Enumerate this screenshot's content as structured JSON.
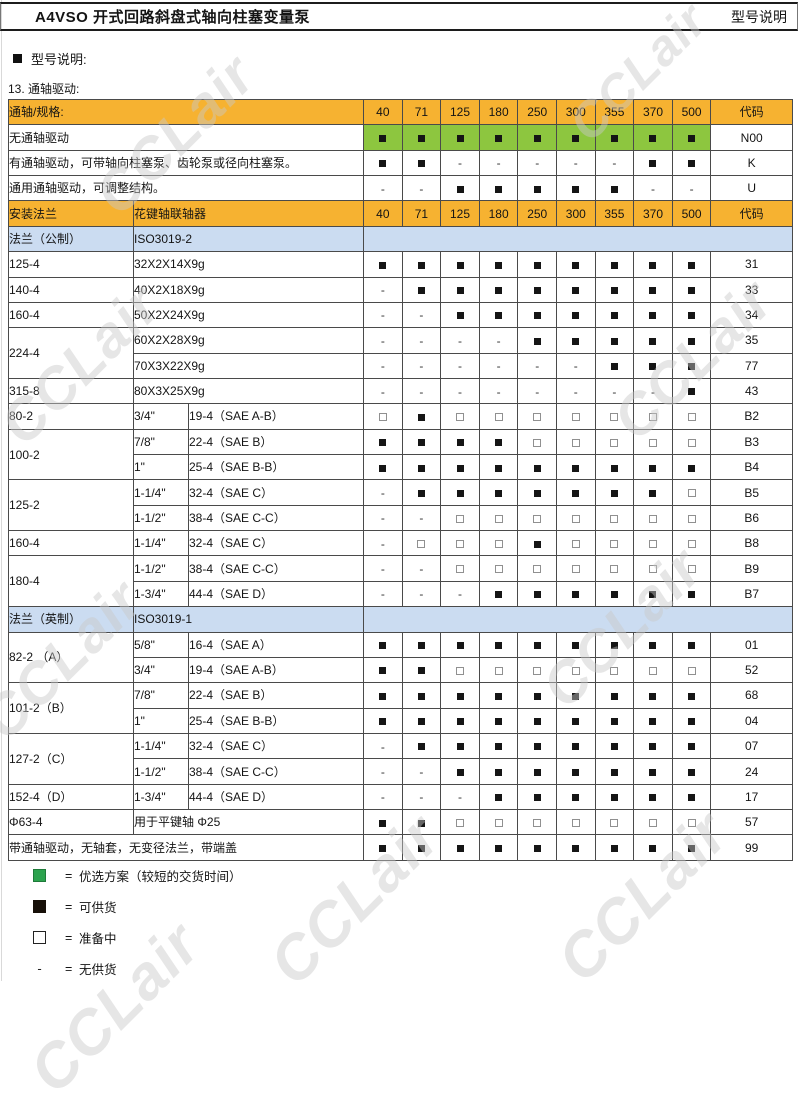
{
  "header": {
    "title_left": "A4VSO 开式回路斜盘式轴向柱塞变量泵",
    "title_right": "型号说明",
    "section_title": "型号说明:",
    "subsection": "13. 通轴驱动:"
  },
  "watermark_text": "CCLair",
  "colors": {
    "header_orange": "#F6B231",
    "preferred_green": "#8DC63F",
    "section_blue": "#CBDCF1",
    "legend_green": "#2CA34E",
    "grid": "#4a4a4a"
  },
  "table": {
    "header1_label": "通轴/规格:",
    "header2_label1": "安装法兰",
    "header2_label2": "花键轴联轴器",
    "size_columns": [
      "40",
      "71",
      "125",
      "180",
      "250",
      "300",
      "355",
      "370",
      "500"
    ],
    "code_header": "代码",
    "drive_rows": [
      {
        "label": "无通轴驱动",
        "preferred": true,
        "marks": [
          "f",
          "f",
          "f",
          "f",
          "f",
          "f",
          "f",
          "f",
          "f"
        ],
        "code": "N00"
      },
      {
        "label": "有通轴驱动，可带轴向柱塞泵、齿轮泵或径向柱塞泵。",
        "marks": [
          "f",
          "f",
          "-",
          "-",
          "-",
          "-",
          "-",
          "f",
          "f"
        ],
        "code": "K"
      },
      {
        "label": "通用通轴驱动，可调整结构。",
        "marks": [
          "-",
          "-",
          "f",
          "f",
          "f",
          "f",
          "f",
          "-",
          "-"
        ],
        "code": "U"
      }
    ],
    "body": [
      {
        "type": "section",
        "c1": "法兰（公制）",
        "c2": "ISO3019-2"
      },
      {
        "type": "row",
        "flange": "125-4",
        "rowspan": 1,
        "shaft": "32X2X14X9g",
        "coupling": "",
        "marks": [
          "f",
          "f",
          "f",
          "f",
          "f",
          "f",
          "f",
          "f",
          "f"
        ],
        "code": "31"
      },
      {
        "type": "row",
        "flange": "140-4",
        "rowspan": 1,
        "shaft": "40X2X18X9g",
        "coupling": "",
        "marks": [
          "-",
          "f",
          "f",
          "f",
          "f",
          "f",
          "f",
          "f",
          "f"
        ],
        "code": "33"
      },
      {
        "type": "row",
        "flange": "160-4",
        "rowspan": 1,
        "shaft": "50X2X24X9g",
        "coupling": "",
        "marks": [
          "-",
          "-",
          "f",
          "f",
          "f",
          "f",
          "f",
          "f",
          "f"
        ],
        "code": "34"
      },
      {
        "type": "row",
        "flange": "224-4",
        "rowspan": 2,
        "shaft": "60X2X28X9g",
        "coupling": "",
        "marks": [
          "-",
          "-",
          "-",
          "-",
          "f",
          "f",
          "f",
          "f",
          "f"
        ],
        "code": "35"
      },
      {
        "type": "row",
        "flange": null,
        "shaft": "70X3X22X9g",
        "coupling": "",
        "marks": [
          "-",
          "-",
          "-",
          "-",
          "-",
          "-",
          "f",
          "f",
          "f"
        ],
        "code": "77"
      },
      {
        "type": "row",
        "flange": "315-8",
        "rowspan": 1,
        "shaft": "80X3X25X9g",
        "coupling": "",
        "marks": [
          "-",
          "-",
          "-",
          "-",
          "-",
          "-",
          "-",
          "-",
          "f"
        ],
        "code": "43"
      },
      {
        "type": "row",
        "flange": "80-2",
        "rowspan": 1,
        "shaft": "3/4\"",
        "coupling": "19-4（SAE A-B）",
        "marks": [
          "o",
          "f",
          "o",
          "o",
          "o",
          "o",
          "o",
          "o",
          "o"
        ],
        "code": "B2"
      },
      {
        "type": "row",
        "flange": "100-2",
        "rowspan": 2,
        "shaft": "7/8\"",
        "coupling": "22-4（SAE B）",
        "marks": [
          "f",
          "f",
          "f",
          "f",
          "o",
          "o",
          "o",
          "o",
          "o"
        ],
        "code": "B3"
      },
      {
        "type": "row",
        "flange": null,
        "shaft": "1\"",
        "coupling": "25-4（SAE B-B）",
        "marks": [
          "f",
          "f",
          "f",
          "f",
          "f",
          "f",
          "f",
          "f",
          "f"
        ],
        "code": "B4"
      },
      {
        "type": "row",
        "flange": "125-2",
        "rowspan": 2,
        "shaft": "1-1/4\"",
        "coupling": "32-4（SAE C）",
        "marks": [
          "-",
          "f",
          "f",
          "f",
          "f",
          "f",
          "f",
          "f",
          "o"
        ],
        "code": "B5"
      },
      {
        "type": "row",
        "flange": null,
        "shaft": "1-1/2\"",
        "coupling": "38-4（SAE C-C）",
        "marks": [
          "-",
          "-",
          "o",
          "o",
          "o",
          "o",
          "o",
          "o",
          "o"
        ],
        "code": "B6"
      },
      {
        "type": "row",
        "flange": "160-4",
        "rowspan": 1,
        "shaft": "1-1/4\"",
        "coupling": "32-4（SAE C）",
        "marks": [
          "-",
          "o",
          "o",
          "o",
          "f",
          "o",
          "o",
          "o",
          "o"
        ],
        "code": "B8"
      },
      {
        "type": "row",
        "flange": "180-4",
        "rowspan": 2,
        "shaft": "1-1/2\"",
        "coupling": "38-4（SAE C-C）",
        "marks": [
          "-",
          "-",
          "o",
          "o",
          "o",
          "o",
          "o",
          "o",
          "o"
        ],
        "code": "B9"
      },
      {
        "type": "row",
        "flange": null,
        "shaft": "1-3/4\"",
        "coupling": "44-4（SAE D）",
        "marks": [
          "-",
          "-",
          "-",
          "f",
          "f",
          "f",
          "f",
          "f",
          "f"
        ],
        "code": "B7"
      },
      {
        "type": "section",
        "c1": "法兰（英制）",
        "c2": "ISO3019-1"
      },
      {
        "type": "row",
        "flange": "82-2 （A）",
        "rowspan": 2,
        "shaft": "5/8\"",
        "coupling": "16-4（SAE A）",
        "marks": [
          "f",
          "f",
          "f",
          "f",
          "f",
          "f",
          "f",
          "f",
          "f"
        ],
        "code": "01"
      },
      {
        "type": "row",
        "flange": null,
        "shaft": "3/4\"",
        "coupling": "19-4（SAE A-B）",
        "marks": [
          "f",
          "f",
          "o",
          "o",
          "o",
          "o",
          "o",
          "o",
          "o"
        ],
        "code": "52"
      },
      {
        "type": "row",
        "flange": "101-2（B）",
        "rowspan": 2,
        "shaft": "7/8\"",
        "coupling": "22-4（SAE B）",
        "marks": [
          "f",
          "f",
          "f",
          "f",
          "f",
          "f",
          "f",
          "f",
          "f"
        ],
        "code": "68"
      },
      {
        "type": "row",
        "flange": null,
        "shaft": "1\"",
        "coupling": "25-4（SAE B-B）",
        "marks": [
          "f",
          "f",
          "f",
          "f",
          "f",
          "f",
          "f",
          "f",
          "f"
        ],
        "code": "04"
      },
      {
        "type": "row",
        "flange": "127-2（C）",
        "rowspan": 2,
        "shaft": "1-1/4\"",
        "coupling": "32-4（SAE C）",
        "marks": [
          "-",
          "f",
          "f",
          "f",
          "f",
          "f",
          "f",
          "f",
          "f"
        ],
        "code": "07"
      },
      {
        "type": "row",
        "flange": null,
        "shaft": "1-1/2\"",
        "coupling": "38-4（SAE C-C）",
        "marks": [
          "-",
          "-",
          "f",
          "f",
          "f",
          "f",
          "f",
          "f",
          "f"
        ],
        "code": "24"
      },
      {
        "type": "row",
        "flange": "152-4（D）",
        "rowspan": 1,
        "shaft": "1-3/4\"",
        "coupling": "44-4（SAE D）",
        "marks": [
          "-",
          "-",
          "-",
          "f",
          "f",
          "f",
          "f",
          "f",
          "f"
        ],
        "code": "17"
      },
      {
        "type": "row",
        "flange": "Φ63-4",
        "rowspan": 1,
        "shaft": "用于平键轴  Φ25",
        "coupling": "",
        "marks": [
          "f",
          "f",
          "o",
          "o",
          "o",
          "o",
          "o",
          "o",
          "o"
        ],
        "code": "57"
      },
      {
        "type": "fullrow",
        "label": "带通轴驱动，无轴套，无变径法兰，带端盖",
        "marks": [
          "f",
          "f",
          "f",
          "f",
          "f",
          "f",
          "f",
          "f",
          "f"
        ],
        "code": "99"
      }
    ]
  },
  "legend": [
    {
      "symbol": "green",
      "eq": "=",
      "label": "优选方案（较短的交货时间）"
    },
    {
      "symbol": "black",
      "eq": "=",
      "label": "可供货"
    },
    {
      "symbol": "open",
      "eq": "=",
      "label": "准备中"
    },
    {
      "symbol": "dash",
      "eq": "=",
      "label": "无供货"
    }
  ]
}
